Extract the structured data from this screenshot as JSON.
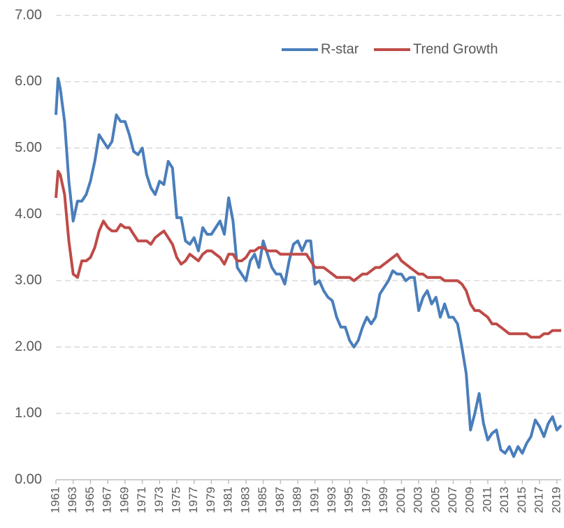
{
  "chart_data": {
    "type": "line",
    "x": [
      1961,
      1961.25,
      1961.5,
      1962,
      1962.5,
      1963,
      1963.5,
      1964,
      1964.5,
      1965,
      1965.5,
      1966,
      1966.5,
      1967,
      1967.5,
      1968,
      1968.5,
      1969,
      1969.5,
      1970,
      1970.5,
      1971,
      1971.5,
      1972,
      1972.5,
      1973,
      1973.5,
      1974,
      1974.5,
      1975,
      1975.5,
      1976,
      1976.5,
      1977,
      1977.5,
      1978,
      1978.5,
      1979,
      1979.5,
      1980,
      1980.5,
      1981,
      1981.5,
      1982,
      1982.5,
      1983,
      1983.5,
      1984,
      1984.5,
      1985,
      1985.5,
      1986,
      1986.5,
      1987,
      1987.5,
      1988,
      1988.5,
      1989,
      1989.5,
      1990,
      1990.5,
      1991,
      1991.5,
      1992,
      1992.5,
      1993,
      1993.5,
      1994,
      1994.5,
      1995,
      1995.5,
      1996,
      1996.5,
      1997,
      1997.5,
      1998,
      1998.5,
      1999,
      1999.5,
      2000,
      2000.5,
      2001,
      2001.5,
      2002,
      2002.5,
      2003,
      2003.5,
      2004,
      2004.5,
      2005,
      2005.5,
      2006,
      2006.5,
      2007,
      2007.5,
      2008,
      2008.5,
      2009,
      2009.5,
      2010,
      2010.5,
      2011,
      2011.5,
      2012,
      2012.5,
      2013,
      2013.5,
      2014,
      2014.5,
      2015,
      2015.5,
      2016,
      2016.5,
      2017,
      2017.5,
      2018,
      2018.5,
      2019,
      2019.5
    ],
    "series": [
      {
        "name": "R-star",
        "color": "#4a7ebb",
        "values": [
          5.5,
          6.05,
          5.9,
          5.4,
          4.5,
          3.9,
          4.2,
          4.2,
          4.3,
          4.5,
          4.8,
          5.2,
          5.1,
          5.0,
          5.1,
          5.5,
          5.4,
          5.4,
          5.2,
          4.95,
          4.9,
          5.0,
          4.6,
          4.4,
          4.3,
          4.5,
          4.45,
          4.8,
          4.7,
          3.95,
          3.95,
          3.6,
          3.55,
          3.65,
          3.45,
          3.8,
          3.7,
          3.7,
          3.8,
          3.9,
          3.7,
          4.25,
          3.9,
          3.2,
          3.1,
          3.0,
          3.3,
          3.4,
          3.2,
          3.6,
          3.4,
          3.2,
          3.1,
          3.1,
          2.95,
          3.3,
          3.55,
          3.6,
          3.45,
          3.6,
          3.6,
          2.95,
          3.0,
          2.85,
          2.75,
          2.7,
          2.45,
          2.3,
          2.3,
          2.1,
          2.0,
          2.1,
          2.3,
          2.45,
          2.35,
          2.45,
          2.8,
          2.9,
          3.0,
          3.15,
          3.1,
          3.1,
          3.0,
          3.05,
          3.05,
          2.55,
          2.75,
          2.85,
          2.65,
          2.75,
          2.45,
          2.65,
          2.45,
          2.45,
          2.35,
          2.0,
          1.6,
          0.75,
          1.0,
          1.3,
          0.85,
          0.6,
          0.7,
          0.75,
          0.45,
          0.4,
          0.5,
          0.35,
          0.5,
          0.4,
          0.55,
          0.65,
          0.9,
          0.8,
          0.65,
          0.85,
          0.95,
          0.75,
          0.82
        ]
      },
      {
        "name": "Trend Growth",
        "color": "#be4b48",
        "values": [
          4.25,
          4.65,
          4.6,
          4.3,
          3.6,
          3.1,
          3.05,
          3.3,
          3.3,
          3.35,
          3.5,
          3.75,
          3.9,
          3.8,
          3.75,
          3.75,
          3.85,
          3.8,
          3.8,
          3.7,
          3.6,
          3.6,
          3.6,
          3.55,
          3.65,
          3.7,
          3.75,
          3.65,
          3.55,
          3.35,
          3.25,
          3.3,
          3.4,
          3.35,
          3.3,
          3.4,
          3.45,
          3.45,
          3.4,
          3.35,
          3.25,
          3.4,
          3.4,
          3.3,
          3.3,
          3.35,
          3.45,
          3.45,
          3.5,
          3.5,
          3.45,
          3.45,
          3.45,
          3.4,
          3.4,
          3.4,
          3.4,
          3.4,
          3.4,
          3.4,
          3.3,
          3.2,
          3.2,
          3.2,
          3.15,
          3.1,
          3.05,
          3.05,
          3.05,
          3.05,
          3.0,
          3.05,
          3.1,
          3.1,
          3.15,
          3.2,
          3.2,
          3.25,
          3.3,
          3.35,
          3.4,
          3.3,
          3.25,
          3.2,
          3.15,
          3.1,
          3.1,
          3.05,
          3.05,
          3.05,
          3.05,
          3.0,
          3.0,
          3.0,
          3.0,
          2.95,
          2.85,
          2.65,
          2.55,
          2.55,
          2.5,
          2.45,
          2.35,
          2.35,
          2.3,
          2.25,
          2.2,
          2.2,
          2.2,
          2.2,
          2.2,
          2.15,
          2.15,
          2.15,
          2.2,
          2.2,
          2.25,
          2.25,
          2.25
        ]
      }
    ],
    "xlim": [
      1961,
      2019.5
    ],
    "xticks": [
      1961,
      1963,
      1965,
      1967,
      1969,
      1971,
      1973,
      1975,
      1977,
      1979,
      1981,
      1983,
      1985,
      1987,
      1989,
      1991,
      1993,
      1995,
      1997,
      1999,
      2001,
      2003,
      2005,
      2007,
      2009,
      2011,
      2013,
      2015,
      2017,
      2019
    ],
    "ylim": [
      0,
      7
    ],
    "yticks": [
      {
        "value": 0,
        "label": "0.00"
      },
      {
        "value": 1,
        "label": "1.00"
      },
      {
        "value": 2,
        "label": "2.00"
      },
      {
        "value": 3,
        "label": "3.00"
      },
      {
        "value": 4,
        "label": "4.00"
      },
      {
        "value": 5,
        "label": "5.00"
      },
      {
        "value": 6,
        "label": "6.00"
      },
      {
        "value": 7,
        "label": "7.00"
      }
    ],
    "grid": true,
    "legend": "top-right"
  }
}
